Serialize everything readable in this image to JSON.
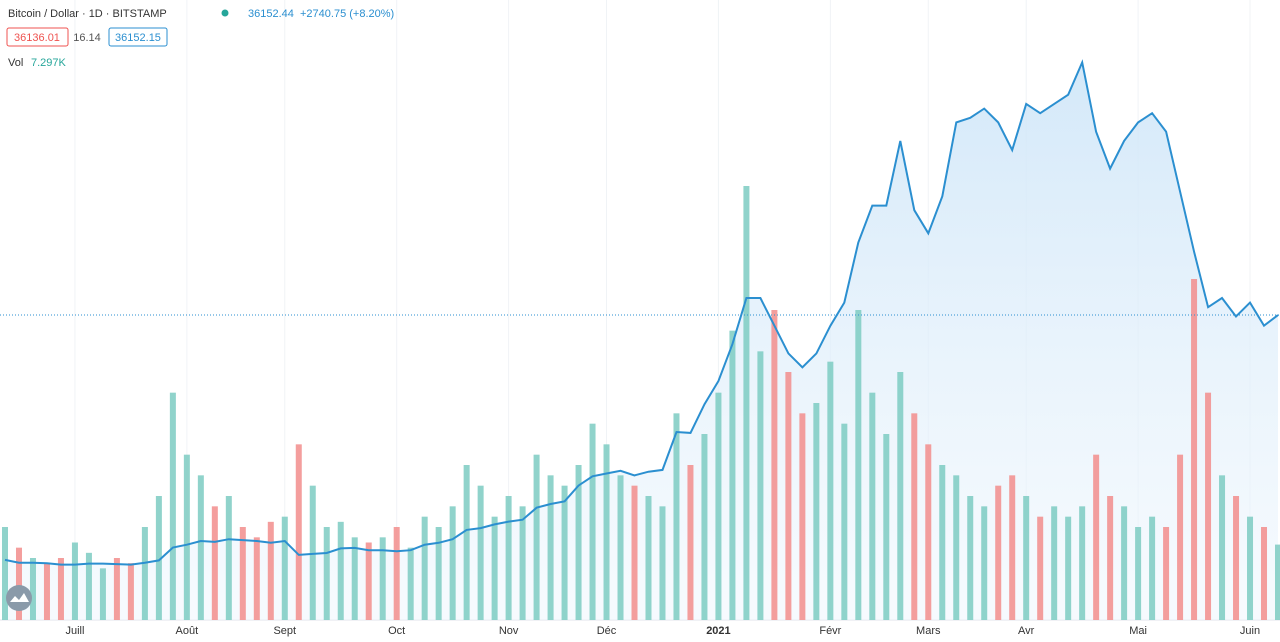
{
  "header": {
    "symbol": "Bitcoin / Dollar · 1D · BITSTAMP",
    "last": "36152.44",
    "change": "+2740.75 (+8.20%)",
    "bid": "36136.01",
    "spread": "16.14",
    "ask": "36152.15",
    "vol_label": "Vol",
    "vol_value": "7.297K"
  },
  "chart_data": {
    "type": "area",
    "color": "#2b8fd0",
    "categories": [
      null,
      null,
      null,
      null,
      null,
      "Juill",
      null,
      null,
      null,
      null,
      null,
      null,
      null,
      "Août",
      null,
      null,
      null,
      null,
      null,
      null,
      "Sept",
      null,
      null,
      null,
      null,
      null,
      null,
      null,
      "Oct",
      null,
      null,
      null,
      null,
      null,
      null,
      null,
      "Nov",
      null,
      null,
      null,
      null,
      null,
      null,
      "Déc",
      null,
      null,
      null,
      null,
      null,
      null,
      null,
      "2021",
      null,
      null,
      null,
      null,
      null,
      null,
      null,
      "Févr",
      null,
      null,
      null,
      null,
      null,
      null,
      "Mars",
      null,
      null,
      null,
      null,
      null,
      null,
      "Avr",
      null,
      null,
      null,
      null,
      null,
      null,
      null,
      "Mai",
      null,
      null,
      null,
      null,
      null,
      null,
      null,
      "Juin",
      null,
      null
    ],
    "values": [
      9650,
      9350,
      9350,
      9300,
      9150,
      9150,
      9250,
      9250,
      9200,
      9150,
      9350,
      9600,
      11000,
      11300,
      11700,
      11600,
      11900,
      11800,
      11700,
      11500,
      11700,
      10200,
      10300,
      10400,
      10900,
      10950,
      10700,
      10700,
      10600,
      10700,
      11300,
      11500,
      11900,
      12900,
      13100,
      13500,
      13800,
      14000,
      15300,
      15700,
      16000,
      17700,
      18700,
      19000,
      19300,
      18800,
      19200,
      19400,
      23500,
      23400,
      26500,
      29000,
      33000,
      38000,
      38000,
      35000,
      32000,
      30500,
      32000,
      35000,
      37500,
      44000,
      48000,
      48000,
      55000,
      47500,
      45000,
      49000,
      57000,
      57500,
      58500,
      57000,
      54000,
      59000,
      58000,
      59000,
      60000,
      63500,
      56000,
      52000,
      55000,
      57000,
      58000,
      56000,
      49500,
      43000,
      37000,
      38000,
      36000,
      37500,
      35000,
      36152.44
    ],
    "ylim": [
      3150,
      70250
    ],
    "volume": {
      "up_color": "#7ccbc2",
      "down_color": "#f28d8c",
      "ylim": [
        0,
        60000
      ],
      "values": [
        9000,
        7000,
        6000,
        5500,
        6000,
        7500,
        6500,
        5000,
        6000,
        5500,
        9000,
        12000,
        22000,
        16000,
        14000,
        11000,
        12000,
        9000,
        8000,
        9500,
        10000,
        17000,
        13000,
        9000,
        9500,
        8000,
        7500,
        8000,
        9000,
        7000,
        10000,
        9000,
        11000,
        15000,
        13000,
        10000,
        12000,
        11000,
        16000,
        14000,
        13000,
        15000,
        19000,
        17000,
        14000,
        13000,
        12000,
        11000,
        20000,
        15000,
        18000,
        22000,
        28000,
        42000,
        26000,
        30000,
        24000,
        20000,
        21000,
        25000,
        19000,
        30000,
        22000,
        18000,
        24000,
        20000,
        17000,
        15000,
        14000,
        12000,
        11000,
        13000,
        14000,
        12000,
        10000,
        11000,
        10000,
        11000,
        16000,
        12000,
        11000,
        9000,
        10000,
        9000,
        16000,
        33000,
        22000,
        14000,
        12000,
        10000,
        9000,
        7297
      ],
      "value_labels": [
        null,
        null,
        null,
        null,
        null,
        null,
        null,
        null,
        null,
        null,
        null,
        null,
        null,
        null,
        null,
        null,
        null,
        null,
        null,
        null,
        null,
        null,
        null,
        null,
        null,
        null,
        null,
        null,
        null,
        null,
        null,
        null,
        null,
        null,
        null,
        null,
        null,
        null,
        null,
        null,
        null,
        null,
        null,
        null,
        null,
        null,
        null,
        null,
        null,
        null,
        null,
        null,
        null,
        null,
        null,
        null,
        null,
        null,
        null,
        null,
        null,
        null,
        null,
        null,
        null,
        null,
        null,
        null,
        null,
        null,
        null,
        null,
        null,
        null,
        null,
        null,
        null,
        null,
        null,
        null,
        null,
        null,
        null,
        null,
        null,
        null,
        null,
        null,
        null,
        null,
        null,
        "7.297K"
      ]
    }
  }
}
